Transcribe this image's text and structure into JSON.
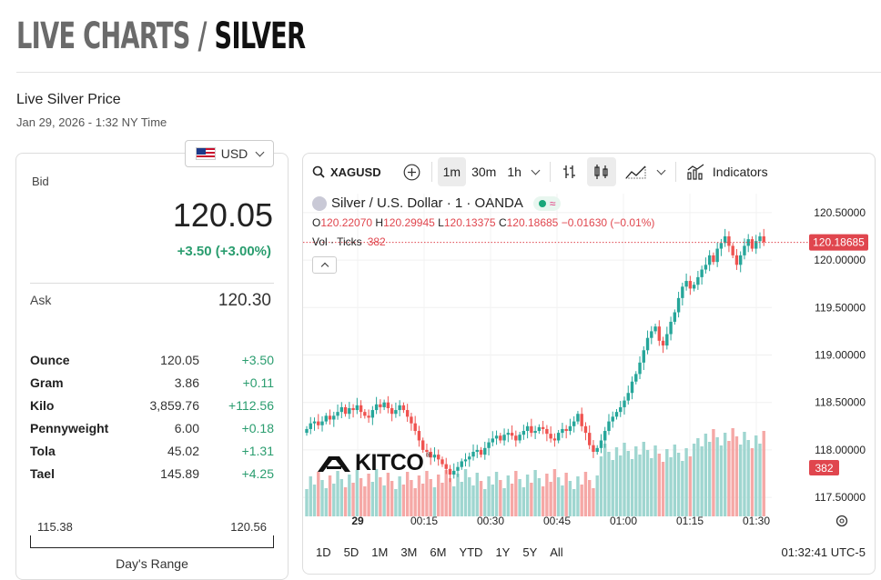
{
  "header": {
    "prefix": "LIVE CHARTS",
    "separator": " / ",
    "title": "SILVER"
  },
  "section": {
    "title": "Live Silver Price",
    "timestamp": "Jan 29, 2026 - 1:32 NY Time"
  },
  "currency": {
    "selected": "USD"
  },
  "quote": {
    "bid_label": "Bid",
    "bid": "120.05",
    "change": "+3.50 (+3.00%)",
    "ask_label": "Ask",
    "ask": "120.30"
  },
  "units": [
    {
      "name": "Ounce",
      "price": "120.05",
      "change": "+3.50"
    },
    {
      "name": "Gram",
      "price": "3.86",
      "change": "+0.11"
    },
    {
      "name": "Kilo",
      "price": "3,859.76",
      "change": "+112.56"
    },
    {
      "name": "Pennyweight",
      "price": "6.00",
      "change": "+0.18"
    },
    {
      "name": "Tola",
      "price": "45.02",
      "change": "+1.31"
    },
    {
      "name": "Tael",
      "price": "145.89",
      "change": "+4.25"
    }
  ],
  "days_range": {
    "low": "115.38",
    "high": "120.56",
    "label": "Day's Range"
  },
  "toolbar": {
    "symbol": "XAGUSD",
    "intervals": [
      "1m",
      "30m",
      "1h"
    ],
    "active_interval": "1m",
    "indicators_label": "Indicators"
  },
  "legend": {
    "name": "Silver / U.S. Dollar · 1 · OANDA",
    "o_label": "O",
    "o": "120.22070",
    "h_label": "H",
    "h": "120.29945",
    "l_label": "L",
    "l": "120.13375",
    "c_label": "C",
    "c": "120.18685",
    "change": "−0.01630 (−0.01%)",
    "vol_label": "Vol · Ticks",
    "vol": "382"
  },
  "watermark": {
    "text": "KITCO",
    "mark": "®"
  },
  "price_axis": [
    "120.50000",
    "120.00000",
    "119.50000",
    "119.00000",
    "118.50000",
    "118.00000",
    "117.50000"
  ],
  "last_price": "120.18685",
  "last_volume": "382",
  "time_axis": [
    "29",
    "00:15",
    "00:30",
    "00:45",
    "01:00",
    "01:15",
    "01:30"
  ],
  "range_buttons": [
    "1D",
    "5D",
    "1M",
    "3M",
    "6M",
    "YTD",
    "1Y",
    "5Y",
    "All"
  ],
  "clock": "01:32:41 UTC-5",
  "colors": {
    "up": "#26a69a",
    "down": "#ef5350",
    "vol_up": "#9fd6d0",
    "vol_down": "#f5a8a6",
    "accent_green": "#2a9d6f",
    "price_tag": "#e0464e"
  },
  "chart_data": {
    "type": "candlestick",
    "title": "Silver / U.S. Dollar · 1 · OANDA",
    "ylim": [
      117.3,
      120.7
    ],
    "x_labels": [
      "29",
      "00:15",
      "00:30",
      "00:45",
      "01:00",
      "01:15",
      "01:30"
    ],
    "close": [
      118.22,
      118.28,
      118.3,
      118.26,
      118.3,
      118.36,
      118.32,
      118.36,
      118.4,
      118.45,
      118.38,
      118.44,
      118.42,
      118.47,
      118.4,
      118.36,
      118.34,
      118.42,
      118.48,
      118.45,
      118.5,
      118.44,
      118.38,
      118.42,
      118.47,
      118.42,
      118.35,
      118.28,
      118.2,
      118.1,
      118.0,
      117.98,
      117.92,
      117.95,
      117.9,
      117.85,
      117.8,
      117.74,
      117.78,
      117.82,
      117.88,
      117.9,
      117.93,
      117.98,
      118.0,
      117.95,
      118.02,
      118.08,
      118.12,
      118.15,
      118.1,
      118.16,
      118.18,
      118.15,
      118.1,
      118.16,
      118.2,
      118.25,
      118.18,
      118.2,
      118.24,
      118.22,
      118.17,
      118.12,
      118.1,
      118.18,
      118.22,
      118.2,
      118.25,
      118.3,
      118.38,
      118.25,
      118.18,
      118.05,
      117.98,
      118.02,
      118.1,
      118.2,
      118.3,
      118.35,
      118.4,
      118.45,
      118.52,
      118.6,
      118.72,
      118.8,
      118.92,
      119.05,
      119.18,
      119.25,
      119.3,
      119.15,
      119.1,
      119.22,
      119.35,
      119.45,
      119.6,
      119.72,
      119.78,
      119.7,
      119.74,
      119.82,
      119.9,
      119.95,
      120.05,
      119.98,
      120.12,
      120.18,
      120.25,
      120.15,
      120.05,
      119.95,
      120.05,
      120.15,
      120.22,
      120.12,
      120.2,
      120.25,
      120.19
    ],
    "volume_last": 382
  }
}
